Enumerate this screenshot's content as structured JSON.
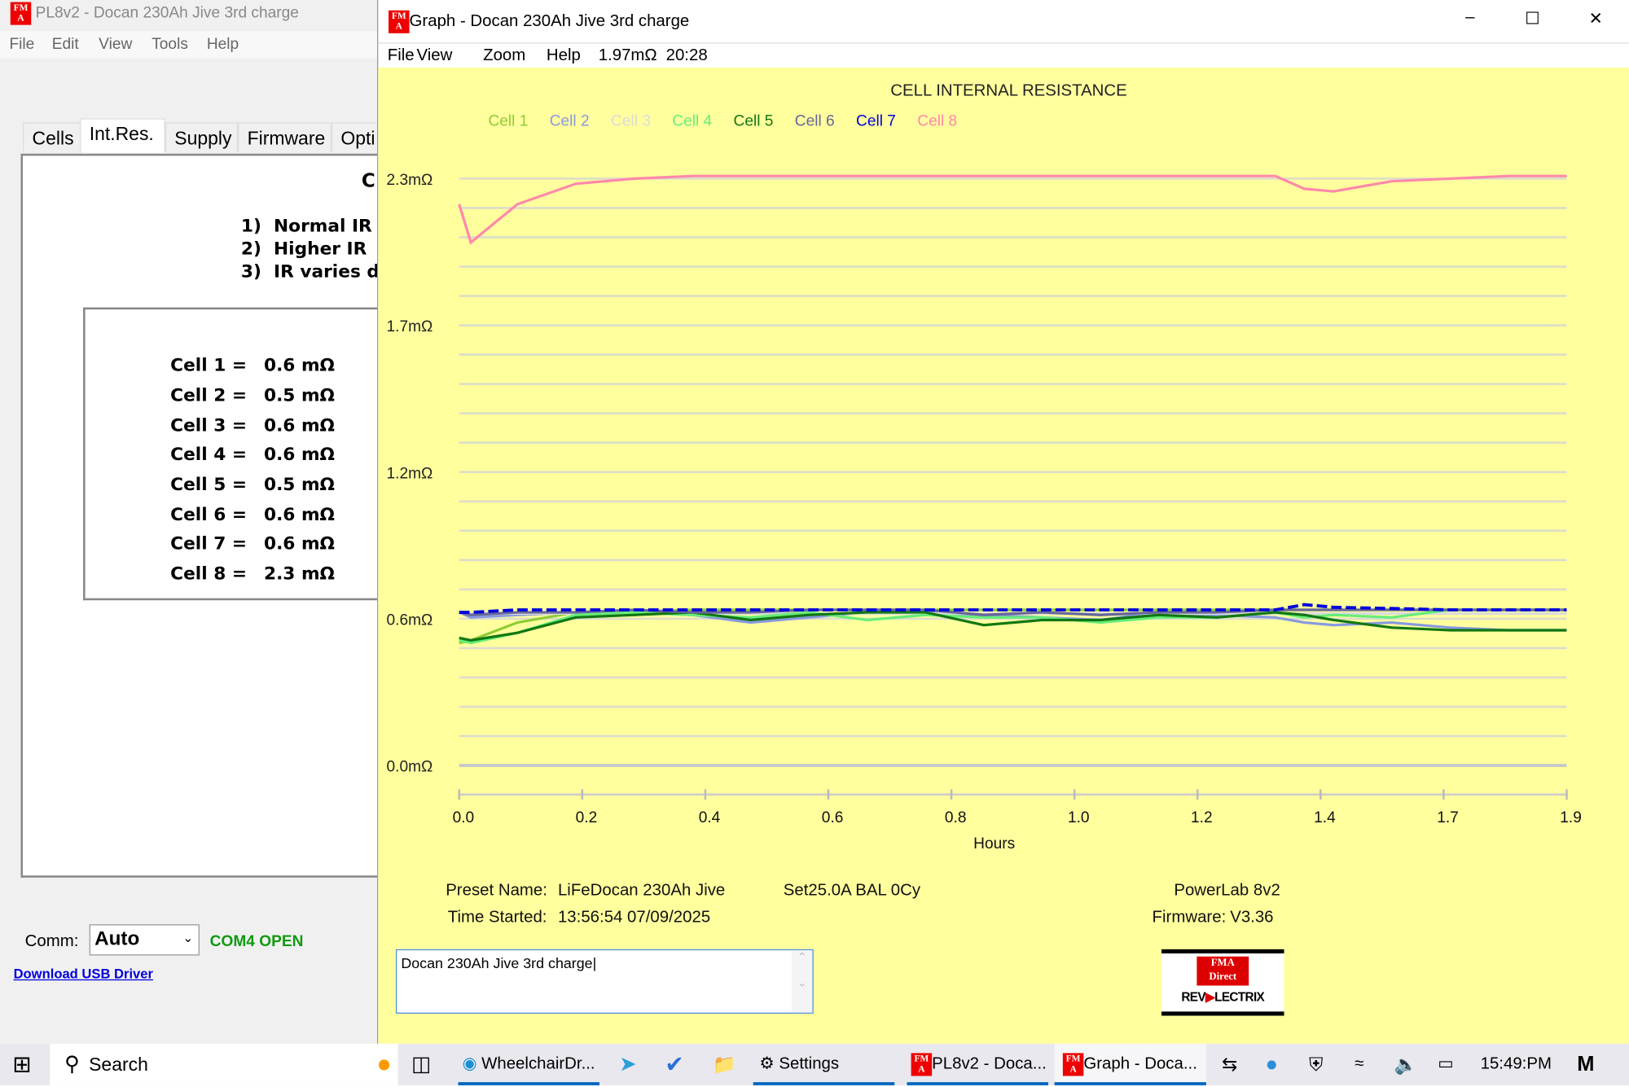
{
  "left_window": {
    "title": "PL8v2 - Docan 230Ah Jive 3rd charge",
    "menu": [
      "File",
      "Edit",
      "View",
      "Tools",
      "Help"
    ],
    "tabs": [
      "Cells",
      "Int.Res.",
      "Supply",
      "Firmware",
      "Opti"
    ],
    "heading_partial": "C",
    "notes": [
      {
        "n": "1)",
        "t": "Normal IR"
      },
      {
        "n": "2)",
        "t": "Higher IR"
      },
      {
        "n": "3)",
        "t": "IR varies d"
      }
    ],
    "cells": [
      {
        "label": "Cell 1 =",
        "value": "0.6 mΩ"
      },
      {
        "label": "Cell 2 =",
        "value": "0.5 mΩ"
      },
      {
        "label": "Cell 3 =",
        "value": "0.6 mΩ"
      },
      {
        "label": "Cell 4 =",
        "value": "0.6 mΩ"
      },
      {
        "label": "Cell 5 =",
        "value": "0.5 mΩ"
      },
      {
        "label": "Cell 6 =",
        "value": "0.6 mΩ"
      },
      {
        "label": "Cell 7 =",
        "value": "0.6 mΩ"
      },
      {
        "label": "Cell 8 =",
        "value": "2.3 mΩ"
      }
    ],
    "comm_label": "Comm:",
    "comm_value": "Auto",
    "comm_status": "COM4 OPEN",
    "usb_link": "Download USB Driver"
  },
  "graph_window": {
    "title": "Graph - Docan 230Ah Jive 3rd charge",
    "menu": [
      "File",
      "View",
      "Zoom",
      "Help"
    ],
    "cursor_value": "1.97mΩ",
    "cursor_time": "20:28",
    "preset_label": "Preset Name:",
    "preset_value": "LiFeDocan 230Ah Jive",
    "settings": "Set25.0A BAL 0Cy",
    "time_label": "Time Started:",
    "time_value": "13:56:54  07/09/2025",
    "device": "PowerLab 8v2",
    "firmware_label": "Firmware:",
    "firmware_value": "V3.36",
    "notes_text": "Docan 230Ah Jive 3rd charge",
    "logo_text": [
      "FMA Direct",
      "REVOLECTRIX"
    ]
  },
  "chart_data": {
    "type": "line",
    "title": "CELL INTERNAL RESISTANCE",
    "xlabel": "Hours",
    "ylabel": "",
    "xlim": [
      0,
      1.9
    ],
    "ylim": [
      0,
      2.3
    ],
    "xticks": [
      "0.0",
      "0.2",
      "0.4",
      "0.6",
      "0.8",
      "1.0",
      "1.2",
      "1.4",
      "1.7",
      "1.9"
    ],
    "yticks": [
      "0.0mΩ",
      "0.6mΩ",
      "1.2mΩ",
      "1.7mΩ",
      "2.3mΩ"
    ],
    "grid": true,
    "legend": "top-left",
    "x": [
      0,
      0.02,
      0.1,
      0.2,
      0.3,
      0.4,
      0.5,
      0.6,
      0.7,
      0.8,
      0.9,
      1.0,
      1.1,
      1.2,
      1.3,
      1.4,
      1.45,
      1.5,
      1.6,
      1.7,
      1.8,
      1.9
    ],
    "series": [
      {
        "name": "Cell 1",
        "color": "#8fcc33",
        "values": [
          0.48,
          0.49,
          0.56,
          0.6,
          0.6,
          0.61,
          0.61,
          0.61,
          0.61,
          0.61,
          0.61,
          0.61,
          0.61,
          0.61,
          0.61,
          0.61,
          0.61,
          0.61,
          0.61,
          0.61,
          0.61,
          0.61
        ]
      },
      {
        "name": "Cell 2",
        "color": "#8899e0",
        "values": [
          0.6,
          0.58,
          0.59,
          0.6,
          0.6,
          0.59,
          0.56,
          0.58,
          0.6,
          0.6,
          0.59,
          0.58,
          0.57,
          0.6,
          0.59,
          0.58,
          0.56,
          0.55,
          0.56,
          0.54,
          0.53,
          0.53
        ]
      },
      {
        "name": "Cell 3",
        "color": "#dadada",
        "values": [
          0.595,
          0.595,
          0.595,
          0.595,
          0.595,
          0.595,
          0.595,
          0.595,
          0.595,
          0.595,
          0.595,
          0.595,
          0.595,
          0.595,
          0.595,
          0.595,
          0.595,
          0.595,
          0.595,
          0.595,
          0.595,
          0.595
        ]
      },
      {
        "name": "Cell 4",
        "color": "#66ee77",
        "values": [
          0.49,
          0.48,
          0.52,
          0.59,
          0.6,
          0.59,
          0.58,
          0.6,
          0.57,
          0.59,
          0.58,
          0.58,
          0.56,
          0.58,
          0.58,
          0.6,
          0.58,
          0.59,
          0.58,
          0.61,
          0.61,
          0.61
        ]
      },
      {
        "name": "Cell 5",
        "color": "#117711",
        "values": [
          0.5,
          0.49,
          0.52,
          0.58,
          0.59,
          0.6,
          0.57,
          0.59,
          0.6,
          0.6,
          0.55,
          0.57,
          0.57,
          0.59,
          0.58,
          0.6,
          0.59,
          0.57,
          0.54,
          0.53,
          0.53,
          0.53
        ]
      },
      {
        "name": "Cell 6",
        "color": "#666699",
        "values": [
          0.6,
          0.59,
          0.6,
          0.6,
          0.61,
          0.6,
          0.6,
          0.61,
          0.61,
          0.61,
          0.59,
          0.6,
          0.59,
          0.6,
          0.6,
          0.61,
          0.61,
          0.61,
          0.61,
          0.61,
          0.61,
          0.61
        ]
      },
      {
        "name": "Cell 7",
        "color": "#0000dd",
        "values": [
          0.6,
          0.6,
          0.61,
          0.61,
          0.61,
          0.61,
          0.61,
          0.61,
          0.61,
          0.61,
          0.61,
          0.61,
          0.61,
          0.61,
          0.61,
          0.61,
          0.63,
          0.62,
          0.615,
          0.61,
          0.61,
          0.61
        ]
      },
      {
        "name": "Cell 8",
        "color": "#ff88aa",
        "values": [
          2.2,
          2.05,
          2.2,
          2.28,
          2.3,
          2.31,
          2.31,
          2.31,
          2.31,
          2.31,
          2.31,
          2.31,
          2.31,
          2.31,
          2.31,
          2.31,
          2.26,
          2.25,
          2.29,
          2.3,
          2.31,
          2.31
        ]
      }
    ]
  },
  "taskbar": {
    "search": "Search",
    "apps": [
      "WheelchairDr...",
      "Settings",
      "PL8v2 - Doca...",
      "Graph - Doca..."
    ],
    "clock": "15:49:PM"
  }
}
